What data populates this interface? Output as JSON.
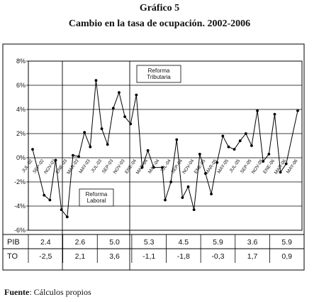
{
  "figure": {
    "title": "Gráfico 5",
    "subtitle": "Cambio en la tasa de ocupación. 2002-2006",
    "source_label": "Fuente",
    "source_text": ": Cálculos propios"
  },
  "chart_data": {
    "type": "line",
    "title": "Gráfico 5",
    "subtitle": "Cambio en la tasa de ocupación. 2002-2006",
    "ylim": [
      -6,
      8
    ],
    "y_ticks": [
      "8%",
      "6%",
      "4%",
      "2%",
      "0%",
      "-2%",
      "-4%",
      "-6%"
    ],
    "y_tick_values": [
      8,
      6,
      4,
      2,
      0,
      -2,
      -4,
      -6
    ],
    "x_tick_labels": [
      {
        "i": 0,
        "label": "JUL-02"
      },
      {
        "i": 2,
        "label": "SEP-02"
      },
      {
        "i": 4,
        "label": "NOV-02"
      },
      {
        "i": 6,
        "label": "ENE-03"
      },
      {
        "i": 8,
        "label": "MAR-03"
      },
      {
        "i": 10,
        "label": "MAY-03"
      },
      {
        "i": 12,
        "label": "JUL-03"
      },
      {
        "i": 14,
        "label": "SEP-03"
      },
      {
        "i": 16,
        "label": "NOV-03"
      },
      {
        "i": 18,
        "label": "ENE-04"
      },
      {
        "i": 20,
        "label": "MAR-04"
      },
      {
        "i": 22,
        "label": "MAY-04"
      },
      {
        "i": 24,
        "label": "JUL-04"
      },
      {
        "i": 26,
        "label": "SEP-04"
      },
      {
        "i": 28,
        "label": "NOV-04"
      },
      {
        "i": 30,
        "label": "ENE-05"
      },
      {
        "i": 32,
        "label": "MAR-05"
      },
      {
        "i": 34,
        "label": "MAY-05"
      },
      {
        "i": 36,
        "label": "JUL-05"
      },
      {
        "i": 38,
        "label": "SEP-05"
      },
      {
        "i": 40,
        "label": "NOV-05"
      },
      {
        "i": 42,
        "label": "ENE-06"
      },
      {
        "i": 44,
        "label": "MAR-06"
      },
      {
        "i": 46,
        "label": "MAY-06"
      }
    ],
    "values": [
      0.7,
      -3.1,
      -3.5,
      -0.2,
      -4.3,
      -4.9,
      0.2,
      0.1,
      2.1,
      0.9,
      6.4,
      2.4,
      1.1,
      4.1,
      5.4,
      3.4,
      2.8,
      5.2,
      -0.8,
      0.6,
      -0.8,
      -0.8,
      -3.5,
      -2.0,
      1.5,
      -3.3,
      -2.4,
      -4.3,
      0.3,
      -1.3,
      -3.0,
      -0.4,
      1.8,
      0.9,
      0.7,
      1.4,
      2.0,
      1.0,
      3.9,
      -0.3,
      0.3,
      3.6,
      -1.2,
      -0.5,
      3.9
    ],
    "x_positions": [
      0,
      2,
      3,
      4,
      5,
      6,
      7,
      8,
      9,
      10,
      11,
      12,
      13,
      14,
      15,
      16,
      17,
      18,
      19,
      20,
      21,
      22.5,
      23,
      24,
      25,
      26,
      27,
      28,
      29,
      30,
      31,
      32,
      33,
      34,
      35,
      36,
      37,
      38,
      39,
      40,
      41,
      42,
      43,
      44,
      46
    ],
    "period_separators_after_index": [
      5.5,
      17.5
    ],
    "annotations": [
      "Reforma Tributaria",
      "Reforma Laboral"
    ],
    "table": {
      "row_labels": [
        "PIB",
        "TO"
      ],
      "columns": [
        {
          "PIB": "2.4",
          "TO": "-2,5"
        },
        {
          "PIB": "2.6",
          "TO": "2,1"
        },
        {
          "PIB": "5.0",
          "TO": "3,6"
        },
        {
          "PIB": "5.3",
          "TO": "-1,1"
        },
        {
          "PIB": "4.5",
          "TO": "-1,8"
        },
        {
          "PIB": "5.9",
          "TO": "-0,3"
        },
        {
          "PIB": "3.6",
          "TO": "1,7"
        },
        {
          "PIB": "5.9",
          "TO": "0,9"
        }
      ]
    }
  }
}
